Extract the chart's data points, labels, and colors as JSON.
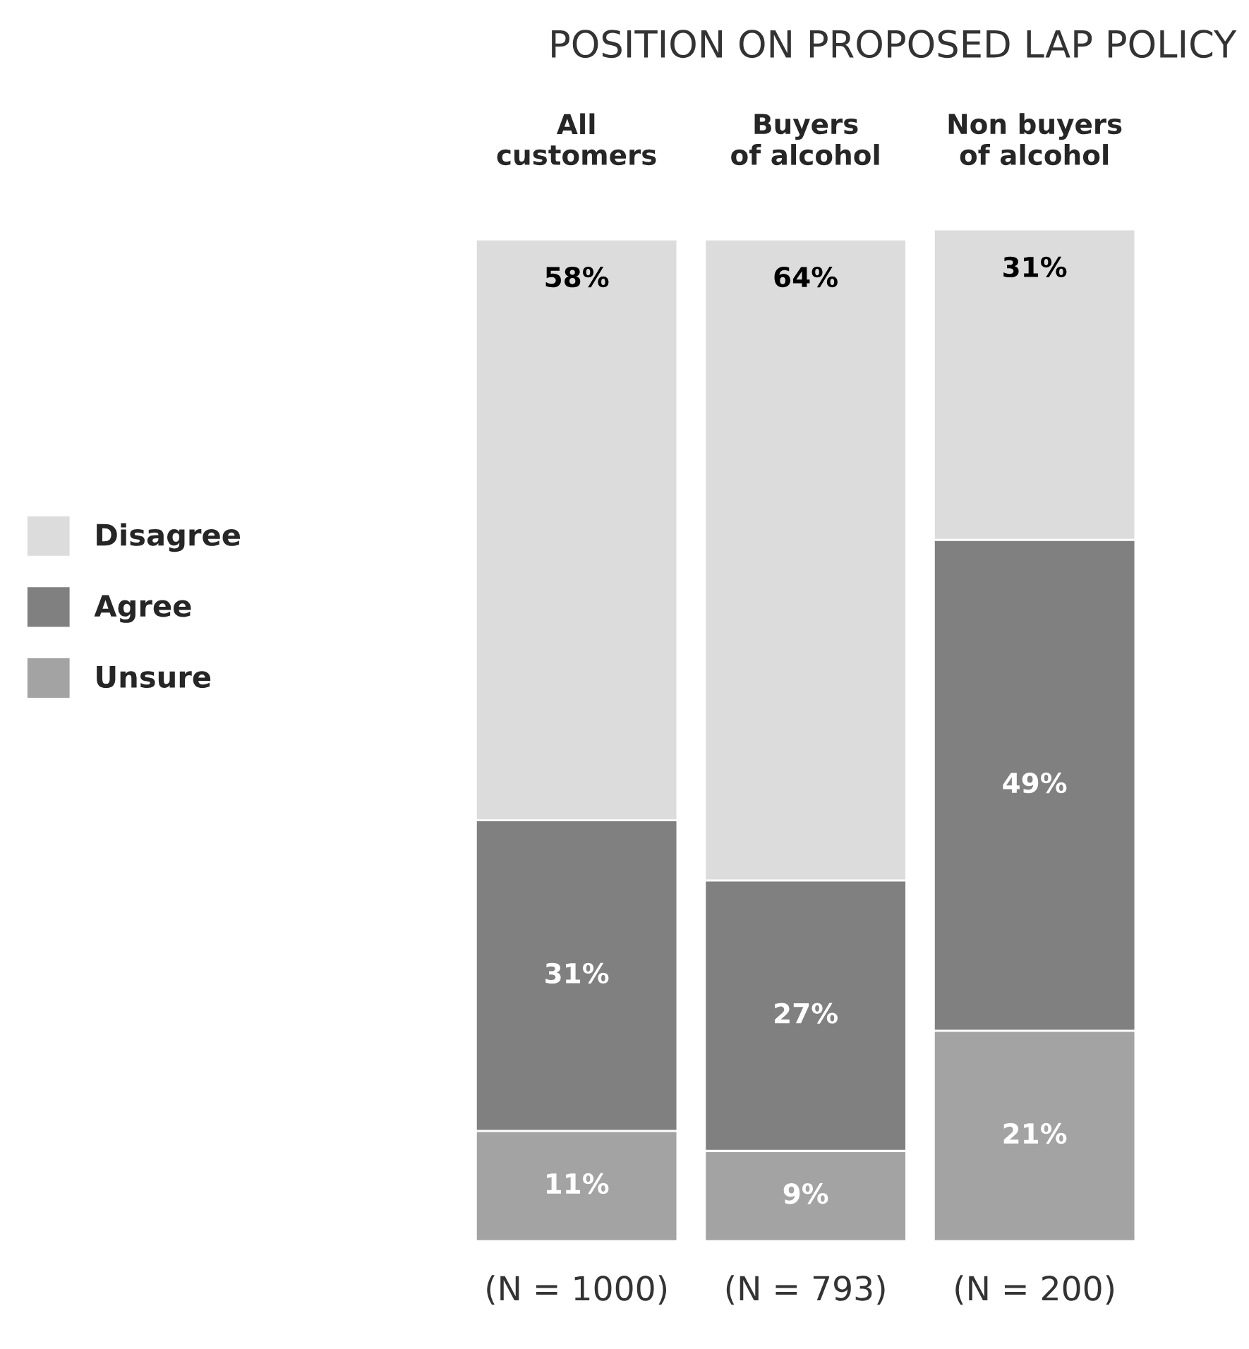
{
  "chart_data": {
    "type": "bar",
    "title": "POSITION ON PROPOSED LAP POLICY",
    "categories": [
      "All\ncustomers",
      "Buyers\nof alcohol",
      "Non buyers\nof alcohol"
    ],
    "stacked": true,
    "legend": "left",
    "grid": false,
    "series": [
      {
        "name": "Unsure",
        "color": "#a3a3a3",
        "values": [
          11,
          9,
          21
        ],
        "value_labels": [
          "11%",
          "9%",
          "21%"
        ]
      },
      {
        "name": "Agree",
        "color": "#808080",
        "values": [
          31,
          27,
          49
        ],
        "value_labels": [
          "31%",
          "27%",
          "49%"
        ]
      },
      {
        "name": "Disagree",
        "color": "#dcdcdc",
        "values": [
          58,
          64,
          31
        ],
        "value_labels": [
          "58%",
          "64%",
          "31%"
        ]
      }
    ],
    "annotations": [
      "(N = 1000)",
      "(N = 793)",
      "(N = 200)"
    ]
  }
}
